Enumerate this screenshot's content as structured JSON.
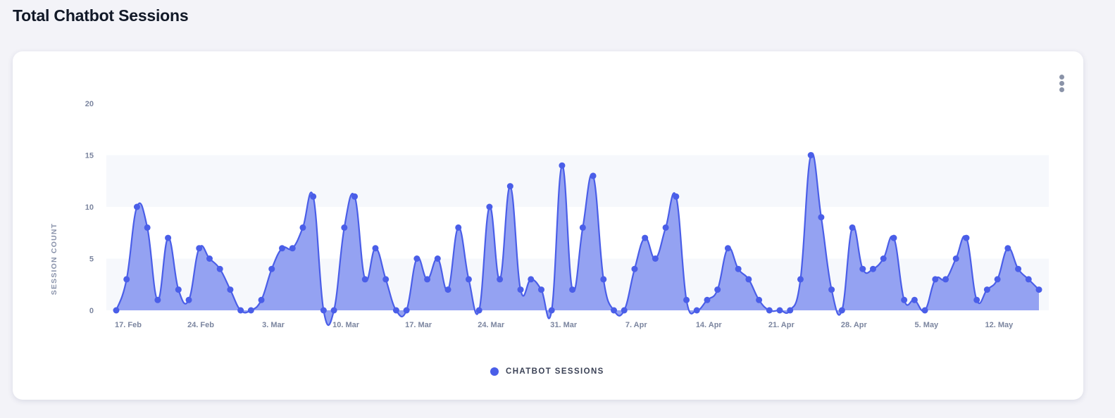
{
  "page": {
    "title": "Total Chatbot Sessions",
    "menu_icon": "kebab-menu-icon"
  },
  "colors": {
    "series": "#4a5ee8",
    "fill": "#94a2f2",
    "band": "#f6f8fc",
    "background": "#f3f3f8"
  },
  "chart_data": {
    "type": "area",
    "title": "Total Chatbot Sessions",
    "xlabel": "",
    "ylabel": "SESSION COUNT",
    "ylim": [
      0,
      20
    ],
    "yticks": [
      "0",
      "5",
      "10",
      "15",
      "20"
    ],
    "start_date": "17 Feb",
    "xticks": [
      {
        "index": 0,
        "label": "17. Feb"
      },
      {
        "index": 7,
        "label": "24. Feb"
      },
      {
        "index": 14,
        "label": "3. Mar"
      },
      {
        "index": 21,
        "label": "10. Mar"
      },
      {
        "index": 28,
        "label": "17. Mar"
      },
      {
        "index": 35,
        "label": "24. Mar"
      },
      {
        "index": 42,
        "label": "31. Mar"
      },
      {
        "index": 49,
        "label": "7. Apr"
      },
      {
        "index": 56,
        "label": "14. Apr"
      },
      {
        "index": 63,
        "label": "21. Apr"
      },
      {
        "index": 70,
        "label": "28. Apr"
      },
      {
        "index": 77,
        "label": "5. May"
      },
      {
        "index": 84,
        "label": "12. May"
      }
    ],
    "legend": "top-bottom-center",
    "series": [
      {
        "name": "CHATBOT SESSIONS",
        "values": [
          0,
          3,
          10,
          8,
          1,
          7,
          2,
          1,
          6,
          5,
          4,
          2,
          0,
          0,
          1,
          4,
          6,
          6,
          8,
          11,
          0,
          0,
          8,
          11,
          3,
          6,
          3,
          0,
          0,
          5,
          3,
          5,
          2,
          8,
          3,
          0,
          10,
          3,
          12,
          2,
          3,
          2,
          0,
          14,
          2,
          8,
          13,
          3,
          0,
          0,
          4,
          7,
          5,
          8,
          11,
          1,
          0,
          1,
          2,
          6,
          4,
          3,
          1,
          0,
          0,
          0,
          3,
          15,
          9,
          2,
          0,
          8,
          4,
          4,
          5,
          7,
          1,
          1,
          0,
          3,
          3,
          5,
          7,
          1,
          2,
          3,
          6,
          4,
          3,
          2
        ]
      }
    ]
  }
}
